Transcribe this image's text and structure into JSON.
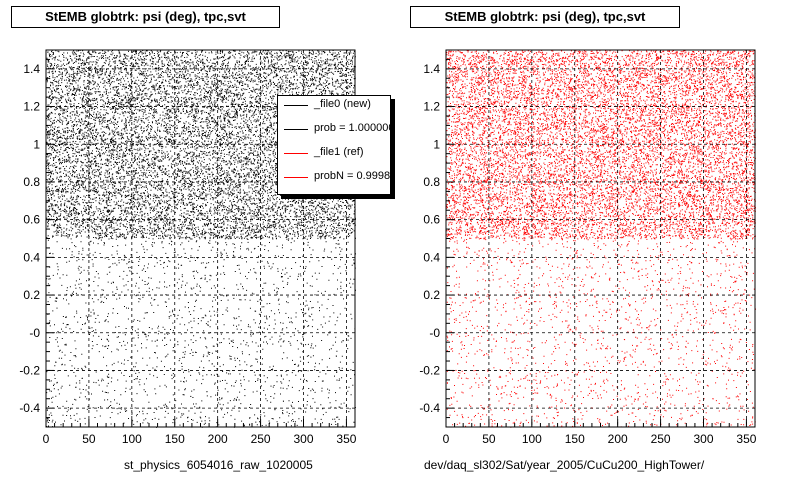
{
  "chart_data": [
    {
      "type": "scatter",
      "title": "StEMB globtrk: psi (deg), tpc,svt",
      "xlabel": "st_physics_6054016_raw_1020005",
      "ylabel": "",
      "xlim": [
        0,
        360
      ],
      "ylim": [
        -0.5,
        1.5
      ],
      "x_ticks": [
        0,
        50,
        100,
        150,
        200,
        250,
        300,
        350
      ],
      "x_tick_labels": [
        "0",
        "50",
        "100",
        "150",
        "200",
        "250",
        "300",
        "350"
      ],
      "y_ticks": [
        -0.4,
        -0.2,
        0,
        0.2,
        0.4,
        0.6,
        0.8,
        1.0,
        1.2,
        1.4
      ],
      "y_tick_labels": [
        "-0.4",
        "-0.2",
        "-0",
        "0.2",
        "0.4",
        "0.6",
        "0.8",
        "1",
        "1.2",
        "1.4"
      ],
      "grid": true,
      "series": [
        {
          "color": "#000000",
          "regions": [
            {
              "x": [
                0,
                360
              ],
              "y": [
                0.5,
                1.5
              ],
              "density": "high"
            },
            {
              "x": [
                0,
                360
              ],
              "y": [
                -0.5,
                0.5
              ],
              "density": "low"
            }
          ]
        }
      ],
      "legend": {
        "position": "top-right",
        "entries": [
          {
            "label": "_file0 (new)",
            "color": "#000000"
          },
          {
            "label": "prob = 1.000000",
            "color": "#000000"
          },
          {
            "label": "_file1 (ref)",
            "color": "#ff0000"
          },
          {
            "label": "probN = 0.99981",
            "color": "#ff0000"
          }
        ]
      }
    },
    {
      "type": "scatter",
      "title": "StEMB globtrk: psi (deg), tpc,svt",
      "xlabel": "dev/daq_sl302/Sat/year_2005/CuCu200_HighTower/",
      "ylabel": "",
      "xlim": [
        0,
        360
      ],
      "ylim": [
        -0.5,
        1.5
      ],
      "x_ticks": [
        0,
        50,
        100,
        150,
        200,
        250,
        300,
        350
      ],
      "x_tick_labels": [
        "0",
        "50",
        "100",
        "150",
        "200",
        "250",
        "300",
        "350"
      ],
      "y_ticks": [
        -0.4,
        -0.2,
        0,
        0.2,
        0.4,
        0.6,
        0.8,
        1.0,
        1.2,
        1.4
      ],
      "y_tick_labels": [
        "-0.4",
        "-0.2",
        "-0",
        "0.2",
        "0.4",
        "0.6",
        "0.8",
        "1",
        "1.2",
        "1.4"
      ],
      "grid": true,
      "series": [
        {
          "color": "#ff0000",
          "regions": [
            {
              "x": [
                0,
                360
              ],
              "y": [
                0.5,
                1.5
              ],
              "density": "high"
            },
            {
              "x": [
                0,
                360
              ],
              "y": [
                -0.5,
                0.5
              ],
              "density": "low"
            }
          ]
        }
      ]
    }
  ]
}
